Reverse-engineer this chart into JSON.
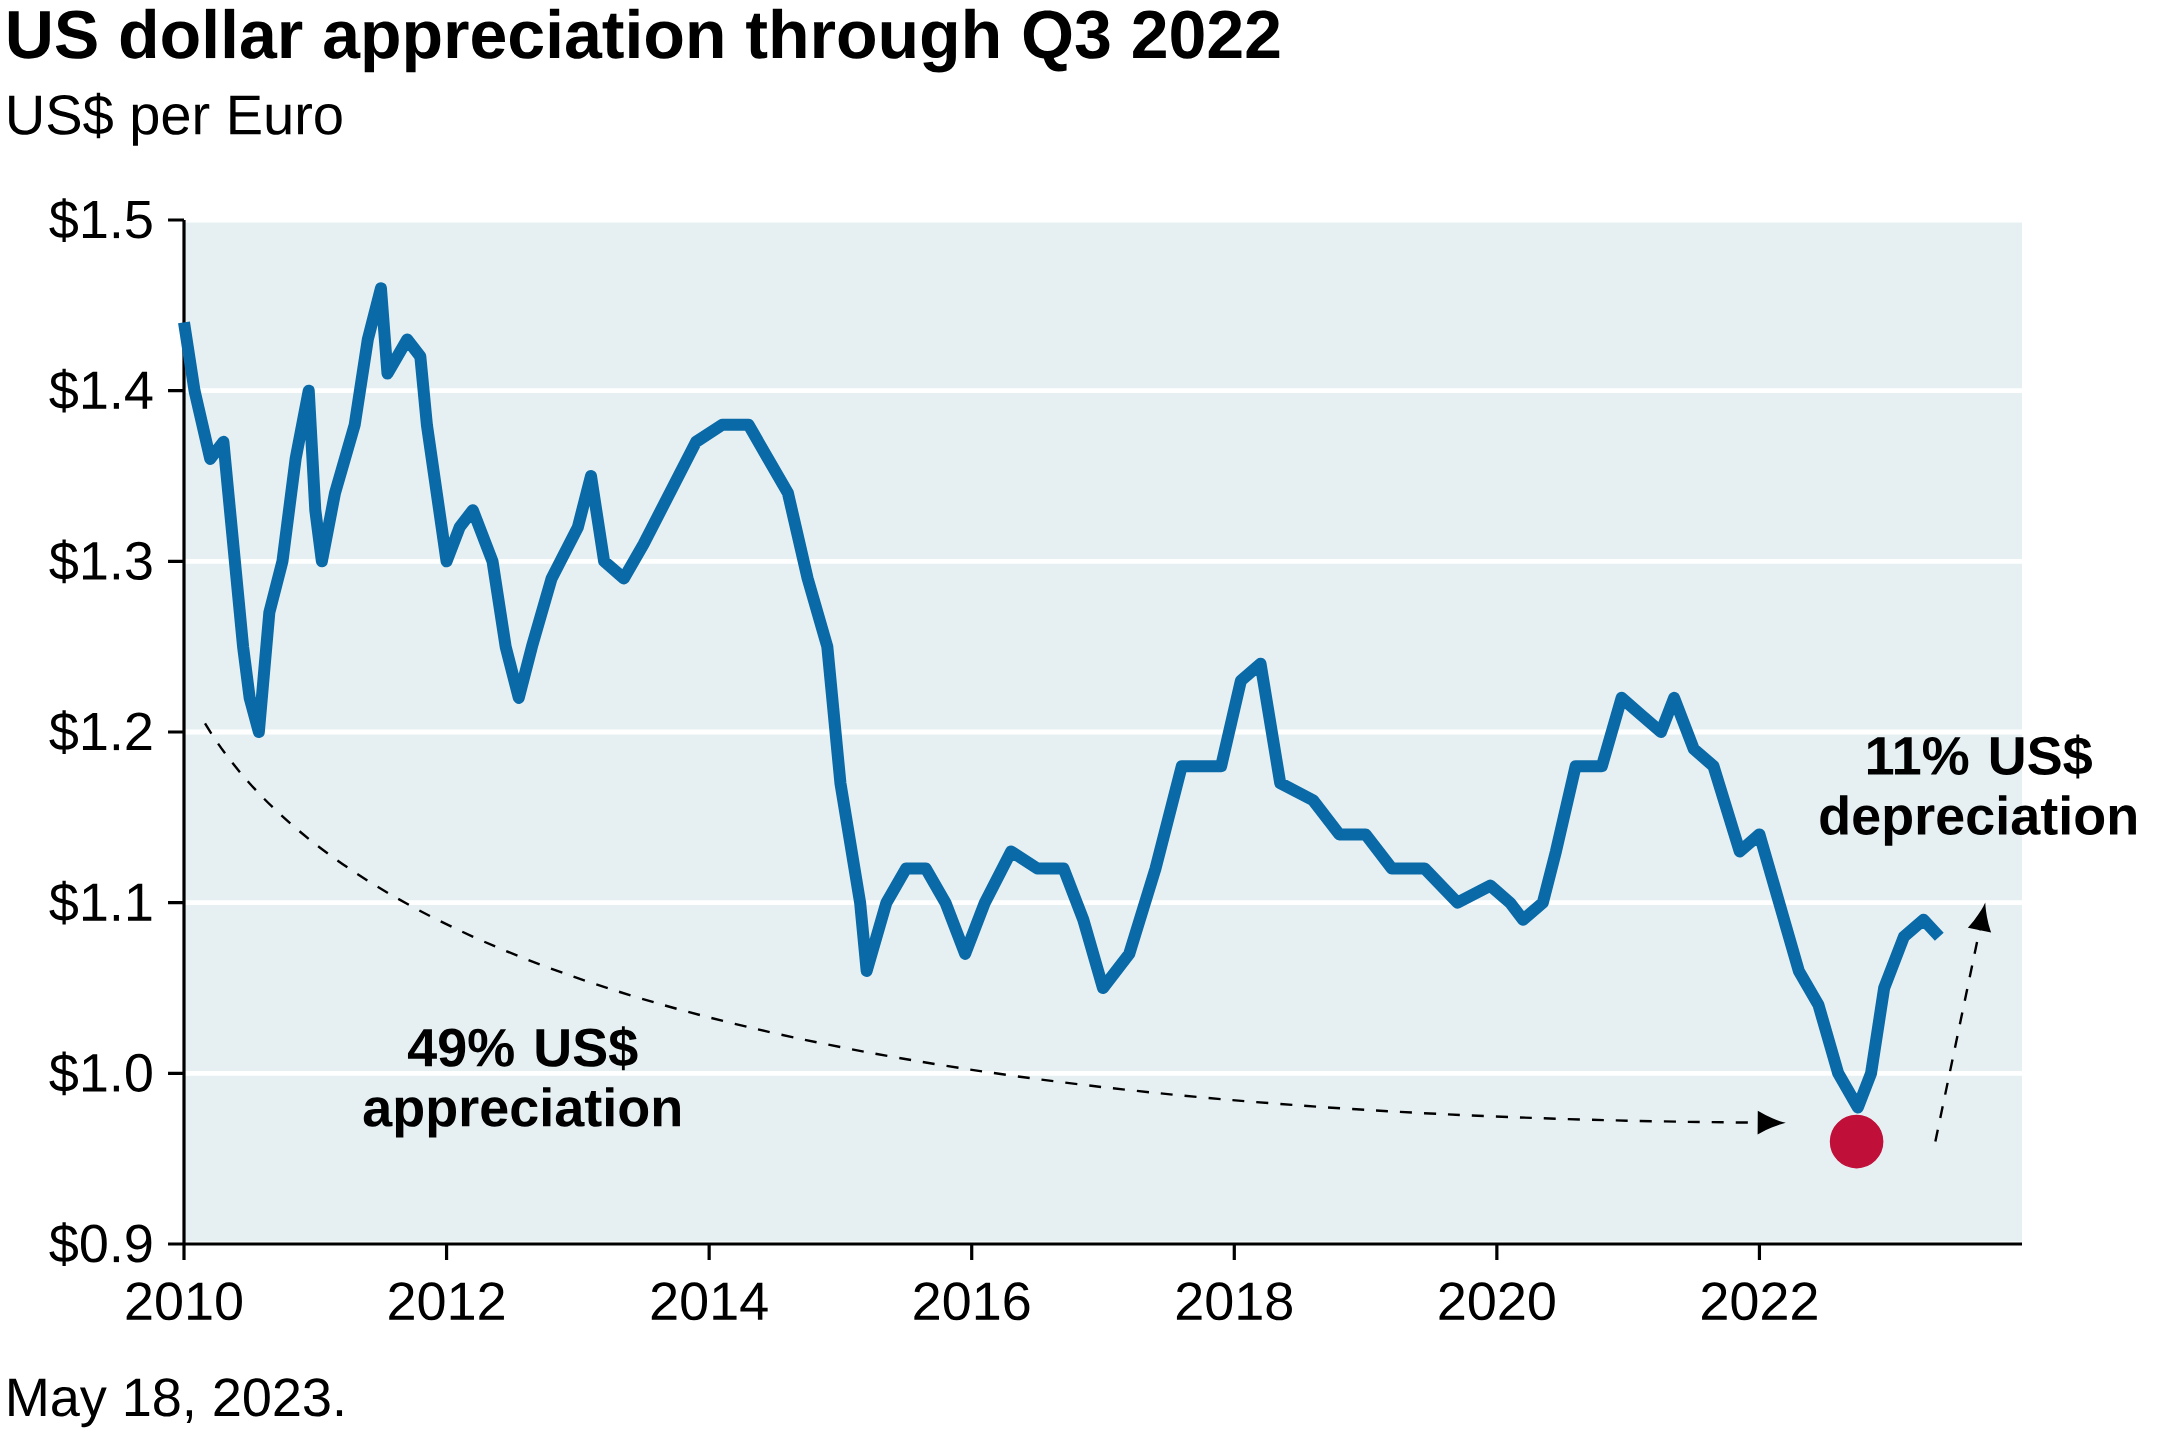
{
  "chart_data": {
    "type": "line",
    "title": "US dollar appreciation through Q3 2022",
    "subtitle": "US$ per Euro",
    "annotations": [
      "49% US$ appreciation",
      "11% US$ depreciation",
      "May 18, 2023."
    ],
    "xlim": [
      2010,
      2024
    ],
    "ylim": [
      0.9,
      1.5
    ],
    "xticks": [
      2010,
      2012,
      2014,
      2016,
      2018,
      2020,
      2022
    ],
    "yticks": [
      {
        "value": 0.9,
        "label": "$0.9"
      },
      {
        "value": 1.0,
        "label": "$1.0"
      },
      {
        "value": 1.1,
        "label": "$1.1"
      },
      {
        "value": 1.2,
        "label": "$1.2"
      },
      {
        "value": 1.3,
        "label": "$1.3"
      },
      {
        "value": 1.4,
        "label": "$1.4"
      },
      {
        "value": 1.5,
        "label": "$1.5"
      }
    ],
    "grid": "y",
    "series": [
      {
        "color": "#0a6aa8",
        "x": [
          2010.0,
          2010.08,
          2010.2,
          2010.3,
          2010.35,
          2010.45,
          2010.5,
          2010.57,
          2010.65,
          2010.75,
          2010.85,
          2010.95,
          2011.0,
          2011.05,
          2011.15,
          2011.3,
          2011.4,
          2011.5,
          2011.55,
          2011.7,
          2011.8,
          2011.85,
          2012.0,
          2012.1,
          2012.2,
          2012.35,
          2012.45,
          2012.55,
          2012.65,
          2012.8,
          2013.0,
          2013.1,
          2013.2,
          2013.35,
          2013.5,
          2013.7,
          2013.9,
          2014.1,
          2014.3,
          2014.45,
          2014.6,
          2014.75,
          2014.9,
          2015.0,
          2015.15,
          2015.2,
          2015.35,
          2015.5,
          2015.65,
          2015.8,
          2015.95,
          2016.1,
          2016.3,
          2016.5,
          2016.7,
          2016.85,
          2017.0,
          2017.2,
          2017.4,
          2017.6,
          2017.75,
          2017.9,
          2018.05,
          2018.2,
          2018.35,
          2018.6,
          2018.8,
          2019.0,
          2019.2,
          2019.45,
          2019.7,
          2019.95,
          2020.1,
          2020.2,
          2020.35,
          2020.45,
          2020.6,
          2020.8,
          2020.95,
          2021.1,
          2021.25,
          2021.35,
          2021.5,
          2021.65,
          2021.85,
          2022.0,
          2022.15,
          2022.3,
          2022.45,
          2022.6,
          2022.75,
          2022.85,
          2022.95,
          2023.1,
          2023.25,
          2023.37
        ],
        "values": [
          1.44,
          1.4,
          1.36,
          1.37,
          1.33,
          1.25,
          1.22,
          1.2,
          1.27,
          1.3,
          1.36,
          1.4,
          1.33,
          1.3,
          1.34,
          1.38,
          1.43,
          1.46,
          1.41,
          1.43,
          1.42,
          1.38,
          1.3,
          1.32,
          1.33,
          1.3,
          1.25,
          1.22,
          1.25,
          1.29,
          1.32,
          1.35,
          1.3,
          1.29,
          1.31,
          1.34,
          1.37,
          1.38,
          1.38,
          1.36,
          1.34,
          1.29,
          1.25,
          1.17,
          1.1,
          1.06,
          1.1,
          1.12,
          1.12,
          1.1,
          1.07,
          1.1,
          1.13,
          1.12,
          1.12,
          1.09,
          1.05,
          1.07,
          1.12,
          1.18,
          1.18,
          1.18,
          1.23,
          1.24,
          1.17,
          1.16,
          1.14,
          1.14,
          1.12,
          1.12,
          1.1,
          1.11,
          1.1,
          1.09,
          1.1,
          1.13,
          1.18,
          1.18,
          1.22,
          1.21,
          1.2,
          1.22,
          1.19,
          1.18,
          1.13,
          1.14,
          1.1,
          1.06,
          1.04,
          1.0,
          0.98,
          1.0,
          1.05,
          1.08,
          1.09,
          1.08
        ]
      },
      {
        "type": "scatter",
        "color": "#c0103a",
        "x": [
          2022.74
        ],
        "values": [
          0.96
        ]
      }
    ]
  }
}
